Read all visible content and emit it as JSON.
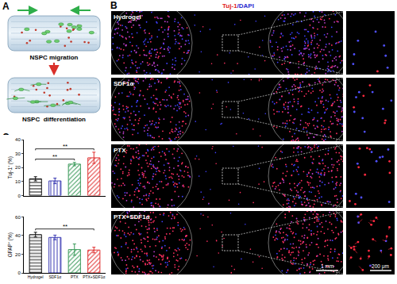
{
  "panels": {
    "A": {
      "label": "A",
      "steps": [
        "NSPC migration",
        "NSPC  differentiation"
      ]
    },
    "B": {
      "label": "B",
      "stain": "Tuj-1/DAPI",
      "rows": [
        "Hydrogel",
        "SDF1α",
        "PTX",
        "PTX+SDF1α"
      ],
      "scale_bars": [
        "1 mm",
        "200 μm"
      ]
    },
    "C": {
      "label": "C"
    }
  },
  "chart_data": [
    {
      "type": "bar",
      "y_label": "Tuj-1⁺ (%)",
      "categories": [
        "Hydrogel",
        "SDF1α",
        "PTX",
        "PTX+SDF1α"
      ],
      "values": [
        12,
        10.5,
        22.5,
        27
      ],
      "errors": [
        1.5,
        2,
        1.2,
        4
      ],
      "colors": [
        "#111111",
        "#3b3bb3",
        "#3a9a5a",
        "#e03030"
      ],
      "ylim": [
        0,
        40
      ],
      "yticks": [
        0,
        10,
        20,
        30,
        40
      ],
      "grid": false,
      "tick_labels": "y",
      "significance": [
        {
          "from": "Hydrogel",
          "to": "PTX",
          "label": "**"
        },
        {
          "from": "Hydrogel",
          "to": "PTX+SDF1α",
          "label": "**"
        }
      ]
    },
    {
      "type": "bar",
      "y_label": "GFAP⁺ (%)",
      "categories": [
        "Hydrogel",
        "SDF1α",
        "PTX",
        "PTX+SDF1α"
      ],
      "values": [
        41,
        38,
        25,
        24.5
      ],
      "errors": [
        2.5,
        2.5,
        6,
        3
      ],
      "colors": [
        "#111111",
        "#3b3bb3",
        "#3a9a5a",
        "#e03030"
      ],
      "ylim": [
        0,
        60
      ],
      "yticks": [
        0,
        20,
        40,
        60
      ],
      "grid": false,
      "significance": [
        {
          "from": "Hydrogel",
          "to": "PTX+SDF1α",
          "label": "**"
        }
      ]
    }
  ]
}
